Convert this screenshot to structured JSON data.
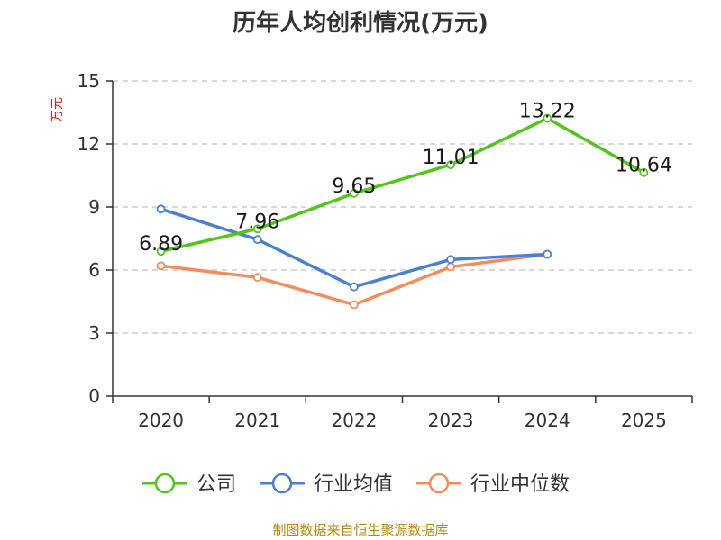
{
  "chart_data": {
    "type": "line",
    "title": "历年人均创利情况(万元)",
    "ylabel": "万元",
    "categories": [
      "2020",
      "2021",
      "2022",
      "2023",
      "2024",
      "2025"
    ],
    "ylim": [
      0,
      15
    ],
    "yticks": [
      0,
      3,
      6,
      9,
      12,
      15
    ],
    "grid": true,
    "legend_position": "bottom",
    "series": [
      {
        "name": "公司",
        "color": "#52c41a",
        "show_labels": true,
        "values": [
          6.89,
          7.96,
          9.65,
          11.01,
          13.22,
          10.64
        ],
        "labels": [
          "6.89",
          "7.96",
          "9.65",
          "11.01",
          "13.22",
          "10.64"
        ]
      },
      {
        "name": "行业均值",
        "color": "#4a7fd6",
        "show_labels": false,
        "values": [
          8.9,
          7.45,
          5.2,
          6.5,
          6.75,
          null
        ]
      },
      {
        "name": "行业中位数",
        "color": "#f28c5a",
        "show_labels": false,
        "values": [
          6.2,
          5.65,
          4.35,
          6.15,
          6.75,
          null
        ]
      }
    ]
  },
  "footer": {
    "text": "制图数据来自恒生聚源数据库",
    "color": "#b8860b"
  },
  "colors": {
    "ylabel": "#e02020",
    "grid": "#cccccc",
    "axis": "#333333"
  }
}
